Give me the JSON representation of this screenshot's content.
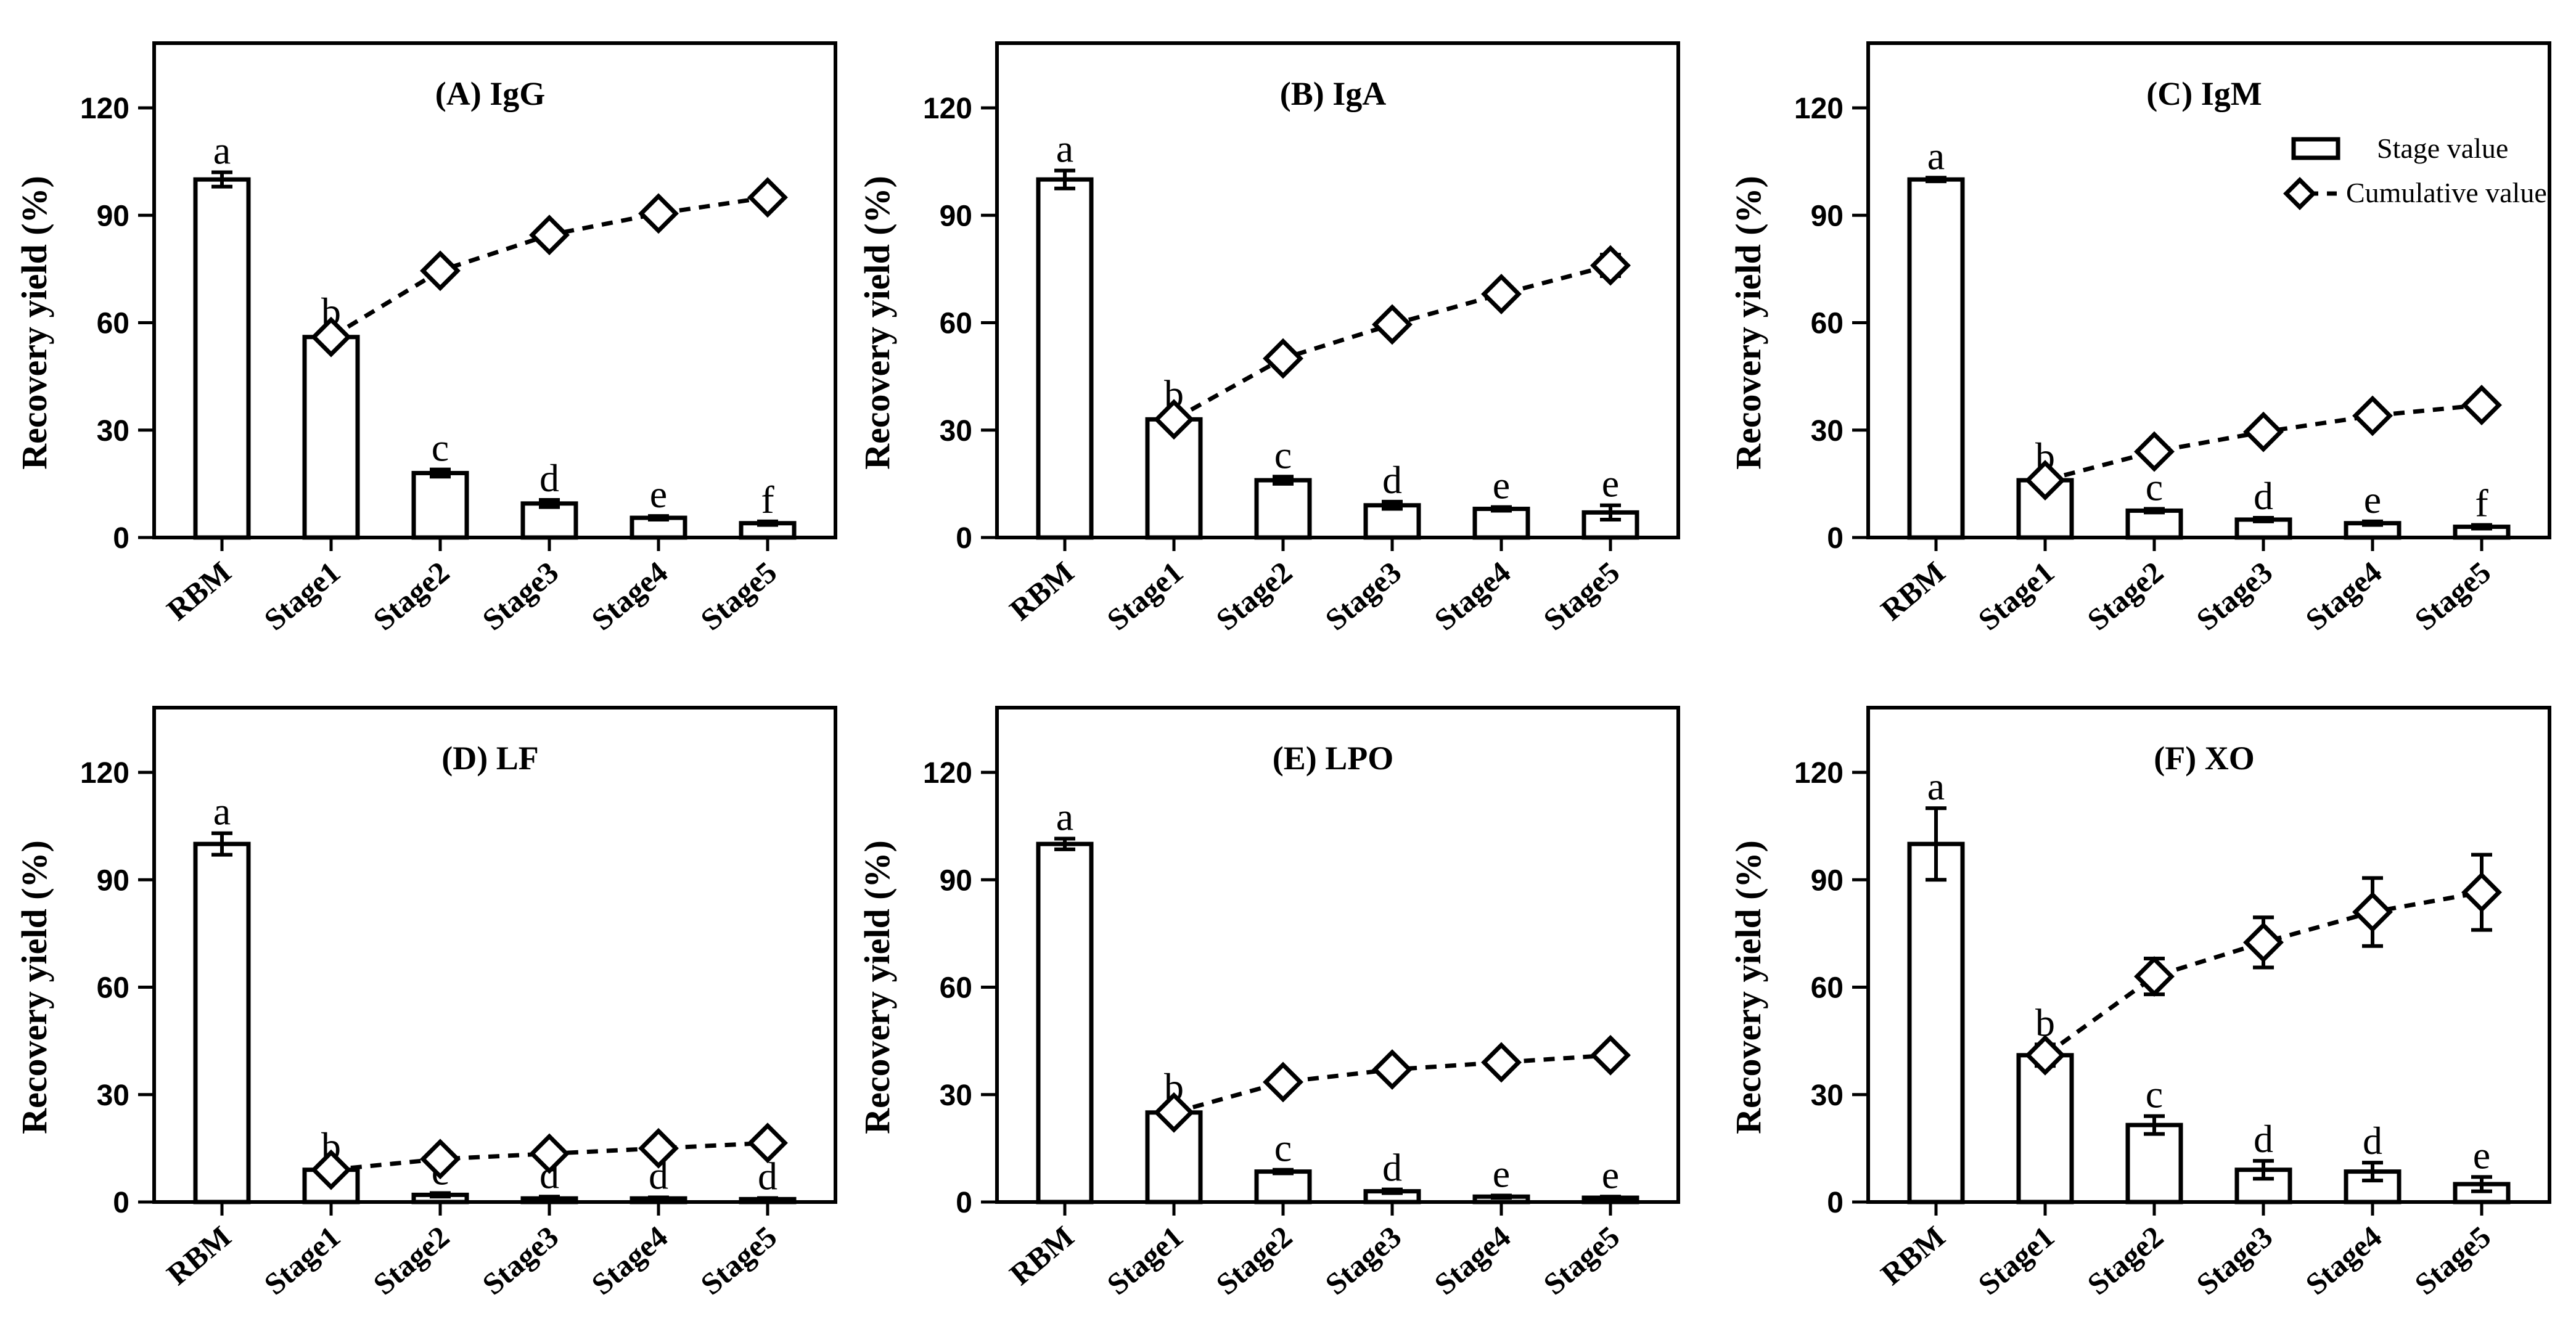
{
  "chart_data": [
    {
      "type": "bar",
      "title": "(A) IgG",
      "ylabel": "Recovery yield (%)",
      "ylim": [
        0,
        120
      ],
      "yticks": [
        "0",
        "30",
        "60",
        "90",
        "120"
      ],
      "categories": [
        "RBM",
        "Stage1",
        "Stage2",
        "Stage3",
        "Stage4",
        "Stage5"
      ],
      "series": [
        {
          "name": "Stage value",
          "type": "bar",
          "values": [
            100,
            56,
            18,
            9.5,
            5.5,
            4
          ],
          "errors": [
            2,
            1,
            1,
            1,
            0.5,
            0.5
          ],
          "letters": [
            "a",
            "b",
            "c",
            "d",
            "e",
            "f"
          ]
        },
        {
          "name": "Cumulative value",
          "type": "line",
          "x": [
            "Stage1",
            "Stage2",
            "Stage3",
            "Stage4",
            "Stage5"
          ],
          "values": [
            56,
            74.5,
            84.5,
            90.5,
            95
          ],
          "errors": [
            0,
            0,
            0,
            0,
            0
          ]
        }
      ]
    },
    {
      "type": "bar",
      "title": "(B) IgA",
      "ylabel": "Recovery yield (%)",
      "ylim": [
        0,
        120
      ],
      "yticks": [
        "0",
        "30",
        "60",
        "90",
        "120"
      ],
      "categories": [
        "RBM",
        "Stage1",
        "Stage2",
        "Stage3",
        "Stage4",
        "Stage5"
      ],
      "series": [
        {
          "name": "Stage value",
          "type": "bar",
          "values": [
            100,
            33,
            16,
            9,
            8,
            7
          ],
          "errors": [
            2.5,
            1,
            1,
            1,
            0.5,
            2
          ],
          "letters": [
            "a",
            "b",
            "c",
            "d",
            "e",
            "e"
          ]
        },
        {
          "name": "Cumulative value",
          "type": "line",
          "x": [
            "Stage1",
            "Stage2",
            "Stage3",
            "Stage4",
            "Stage5"
          ],
          "values": [
            33,
            50,
            59.5,
            68,
            76
          ],
          "errors": [
            0,
            0,
            0,
            0,
            3
          ]
        }
      ]
    },
    {
      "type": "bar",
      "title": "(C) IgM",
      "ylabel": "Recovery yield (%)",
      "ylim": [
        0,
        120
      ],
      "yticks": [
        "0",
        "30",
        "60",
        "90",
        "120"
      ],
      "legend_position": "top-right",
      "categories": [
        "RBM",
        "Stage1",
        "Stage2",
        "Stage3",
        "Stage4",
        "Stage5"
      ],
      "series": [
        {
          "name": "Stage value",
          "type": "bar",
          "values": [
            100,
            16,
            7.5,
            5,
            4,
            3
          ],
          "errors": [
            0.5,
            0.5,
            0.5,
            0.5,
            0.5,
            0.5
          ],
          "letters": [
            "a",
            "b",
            "c",
            "d",
            "e",
            "f"
          ]
        },
        {
          "name": "Cumulative value",
          "type": "line",
          "x": [
            "Stage1",
            "Stage2",
            "Stage3",
            "Stage4",
            "Stage5"
          ],
          "values": [
            16,
            24,
            29.5,
            34,
            37
          ],
          "errors": [
            0,
            0,
            0,
            0,
            0
          ]
        }
      ]
    },
    {
      "type": "bar",
      "title": "(D) LF",
      "ylabel": "Recovery yield (%)",
      "ylim": [
        0,
        120
      ],
      "yticks": [
        "0",
        "30",
        "60",
        "90",
        "120"
      ],
      "categories": [
        "RBM",
        "Stage1",
        "Stage2",
        "Stage3",
        "Stage4",
        "Stage5"
      ],
      "series": [
        {
          "name": "Stage value",
          "type": "bar",
          "values": [
            100,
            9,
            2,
            1,
            1,
            0.8
          ],
          "errors": [
            3,
            0.5,
            0.5,
            0.5,
            0.3,
            0.3
          ],
          "letters": [
            "a",
            "b",
            "c",
            "d",
            "d",
            "d"
          ]
        },
        {
          "name": "Cumulative value",
          "type": "line",
          "x": [
            "Stage1",
            "Stage2",
            "Stage3",
            "Stage4",
            "Stage5"
          ],
          "values": [
            9,
            12,
            13.5,
            15,
            16.5
          ],
          "errors": [
            0,
            0,
            0,
            0,
            0
          ]
        }
      ]
    },
    {
      "type": "bar",
      "title": "(E) LPO",
      "ylabel": "Recovery yield (%)",
      "ylim": [
        0,
        120
      ],
      "yticks": [
        "0",
        "30",
        "60",
        "90",
        "120"
      ],
      "categories": [
        "RBM",
        "Stage1",
        "Stage2",
        "Stage3",
        "Stage4",
        "Stage5"
      ],
      "series": [
        {
          "name": "Stage value",
          "type": "bar",
          "values": [
            100,
            25,
            8.5,
            3,
            1.5,
            1.2
          ],
          "errors": [
            1.5,
            1,
            0.5,
            0.5,
            0.3,
            0.3
          ],
          "letters": [
            "a",
            "b",
            "c",
            "d",
            "e",
            "e"
          ]
        },
        {
          "name": "Cumulative value",
          "type": "line",
          "x": [
            "Stage1",
            "Stage2",
            "Stage3",
            "Stage4",
            "Stage5"
          ],
          "values": [
            25,
            33.5,
            37,
            39,
            41
          ],
          "errors": [
            0,
            0,
            0,
            0,
            0
          ]
        }
      ]
    },
    {
      "type": "bar",
      "title": "(F) XO",
      "ylabel": "Recovery yield (%)",
      "ylim": [
        0,
        120
      ],
      "yticks": [
        "0",
        "30",
        "60",
        "90",
        "120"
      ],
      "categories": [
        "RBM",
        "Stage1",
        "Stage2",
        "Stage3",
        "Stage4",
        "Stage5"
      ],
      "series": [
        {
          "name": "Stage value",
          "type": "bar",
          "values": [
            100,
            41,
            21.5,
            9,
            8.5,
            5
          ],
          "errors": [
            10,
            3,
            2.5,
            2.5,
            2.5,
            2
          ],
          "letters": [
            "a",
            "b",
            "c",
            "d",
            "d",
            "e"
          ]
        },
        {
          "name": "Cumulative value",
          "type": "line",
          "x": [
            "Stage1",
            "Stage2",
            "Stage3",
            "Stage4",
            "Stage5"
          ],
          "values": [
            41,
            63,
            72.5,
            81,
            86.5
          ],
          "errors": [
            0,
            5,
            7,
            9.5,
            10.5
          ]
        }
      ]
    }
  ],
  "legend": {
    "items": [
      {
        "label": "Stage value",
        "marker": "bar"
      },
      {
        "label": "Cumulative value",
        "marker": "diamond-dashed-line"
      }
    ]
  }
}
